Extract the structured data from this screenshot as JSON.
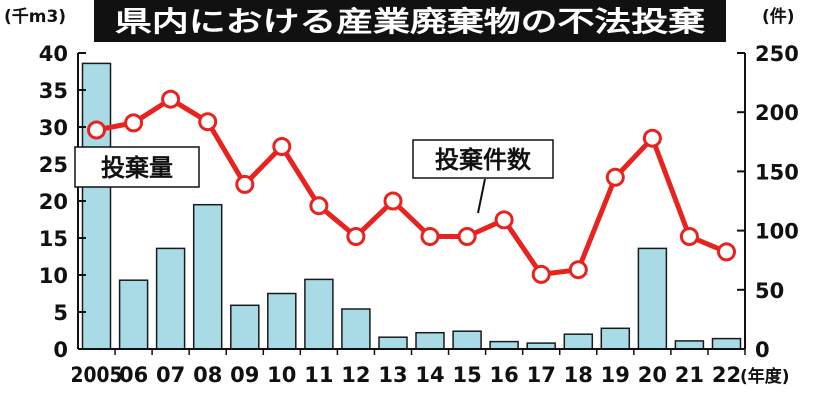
{
  "chart_data": {
    "type": "bar",
    "title": "県内における産業廃棄物の不法投棄",
    "categories": [
      "2005",
      "06",
      "07",
      "08",
      "09",
      "10",
      "11",
      "12",
      "13",
      "14",
      "15",
      "16",
      "17",
      "18",
      "19",
      "20",
      "21",
      "22"
    ],
    "x_unit": "(年度)",
    "series": [
      {
        "name": "投棄量",
        "kind": "bar",
        "axis": "left",
        "values": [
          38.6,
          9.3,
          13.6,
          19.5,
          5.9,
          7.5,
          9.4,
          5.4,
          1.6,
          2.2,
          2.4,
          1.0,
          0.8,
          2.0,
          2.8,
          13.6,
          1.1,
          1.4
        ]
      },
      {
        "name": "投棄件数",
        "kind": "line",
        "axis": "right",
        "values": [
          185,
          191,
          211,
          192,
          139,
          171,
          121,
          95,
          125,
          95,
          95,
          109,
          63,
          67,
          145,
          178,
          95,
          82
        ]
      }
    ],
    "left_axis": {
      "unit": "(千m3)",
      "ylim": [
        0,
        40
      ],
      "ticks": [
        "0",
        "5",
        "10",
        "15",
        "20",
        "25",
        "30",
        "35",
        "40"
      ]
    },
    "right_axis": {
      "unit": "(件)",
      "ylim": [
        0,
        250
      ],
      "ticks": [
        "0",
        "50",
        "100",
        "150",
        "200",
        "250"
      ]
    },
    "grid": false,
    "colors": {
      "bar_fill": "#a9dbe6",
      "bar_stroke": "#1a1a1a",
      "line": "#e8231f",
      "marker_fill": "#ffffff",
      "title_bg": "#111111",
      "title_text": "#ffffff"
    }
  }
}
